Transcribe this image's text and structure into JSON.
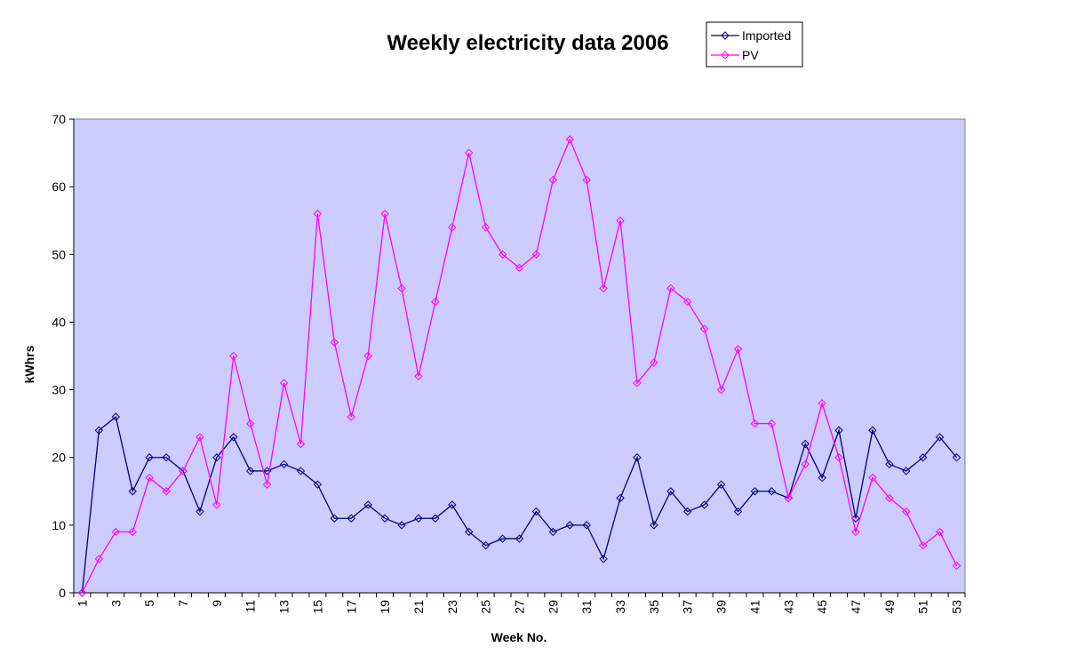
{
  "chart_data": {
    "type": "line",
    "title": "Weekly electricity data 2006",
    "xlabel": "Week No.",
    "ylabel": "kWhrs",
    "ylim": [
      0,
      70
    ],
    "yticks": [
      0,
      10,
      20,
      30,
      40,
      50,
      60,
      70
    ],
    "grid": false,
    "legend_position": "top-right",
    "plot_background": "#CCCCFF",
    "x": [
      1,
      2,
      3,
      4,
      5,
      6,
      7,
      8,
      9,
      10,
      11,
      12,
      13,
      14,
      15,
      16,
      17,
      18,
      19,
      20,
      21,
      22,
      23,
      24,
      25,
      26,
      27,
      28,
      29,
      30,
      31,
      32,
      33,
      34,
      35,
      36,
      37,
      38,
      39,
      40,
      41,
      42,
      43,
      44,
      45,
      46,
      47,
      48,
      49,
      50,
      51,
      52,
      53
    ],
    "xtick_labels": [
      "1",
      "3",
      "5",
      "7",
      "9",
      "11",
      "13",
      "15",
      "17",
      "19",
      "21",
      "23",
      "25",
      "27",
      "29",
      "31",
      "33",
      "35",
      "37",
      "39",
      "41",
      "43",
      "45",
      "47",
      "49",
      "51",
      "53"
    ],
    "series": [
      {
        "name": "Imported",
        "color": "#000080",
        "values": [
          0,
          24,
          26,
          15,
          20,
          20,
          18,
          12,
          20,
          23,
          18,
          18,
          19,
          18,
          16,
          11,
          11,
          13,
          11,
          10,
          11,
          11,
          13,
          9,
          7,
          8,
          8,
          12,
          9,
          10,
          10,
          5,
          14,
          20,
          10,
          15,
          12,
          13,
          16,
          12,
          15,
          15,
          14,
          22,
          17,
          24,
          11,
          24,
          19,
          18,
          20,
          23,
          20
        ]
      },
      {
        "name": "PV",
        "color": "#FF00FF",
        "values": [
          0,
          5,
          9,
          9,
          17,
          15,
          18,
          23,
          13,
          35,
          25,
          16,
          31,
          22,
          56,
          37,
          26,
          35,
          56,
          45,
          32,
          43,
          54,
          65,
          54,
          50,
          48,
          50,
          61,
          67,
          61,
          45,
          55,
          31,
          34,
          45,
          43,
          39,
          30,
          36,
          25,
          25,
          14,
          19,
          28,
          20,
          9,
          17,
          14,
          12,
          7,
          9,
          4
        ]
      }
    ]
  }
}
